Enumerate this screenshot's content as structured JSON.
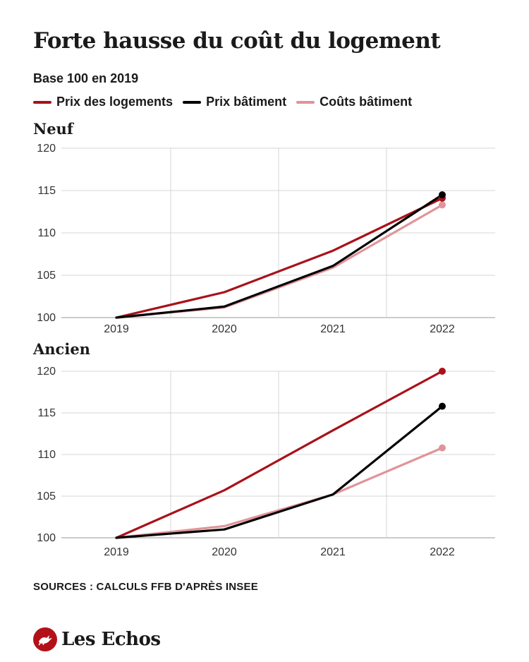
{
  "title": "Forte hausse du coût du logement",
  "subtitle": "Base 100 en 2019",
  "legend": [
    {
      "label": "Prix des logements",
      "color": "#a8121a"
    },
    {
      "label": "Prix bâtiment",
      "color": "#000000"
    },
    {
      "label": "Coûts bâtiment",
      "color": "#e0949a"
    }
  ],
  "chart_data": [
    {
      "type": "line",
      "title": "Neuf",
      "categories": [
        "2019",
        "2020",
        "2021",
        "2022"
      ],
      "yticks": [
        "100",
        "105",
        "110",
        "115",
        "120"
      ],
      "ylim": [
        100,
        120
      ],
      "grid": true,
      "series": [
        {
          "name": "Prix des logements",
          "values": [
            100,
            103,
            107.9,
            114.1
          ],
          "color": "#a8121a"
        },
        {
          "name": "Prix bâtiment",
          "values": [
            100,
            101.3,
            106.1,
            114.5
          ],
          "color": "#000000"
        },
        {
          "name": "Coûts bâtiment",
          "values": [
            100,
            101.2,
            105.9,
            113.3
          ],
          "color": "#e0949a"
        }
      ]
    },
    {
      "type": "line",
      "title": "Ancien",
      "categories": [
        "2019",
        "2020",
        "2021",
        "2022"
      ],
      "yticks": [
        "100",
        "105",
        "110",
        "115",
        "120"
      ],
      "ylim": [
        100,
        120
      ],
      "grid": true,
      "series": [
        {
          "name": "Prix des logements",
          "values": [
            100,
            105.7,
            112.9,
            120
          ],
          "color": "#a8121a"
        },
        {
          "name": "Prix bâtiment",
          "values": [
            100,
            101,
            105.2,
            115.8
          ],
          "color": "#000000"
        },
        {
          "name": "Coûts bâtiment",
          "values": [
            100,
            101.4,
            105.2,
            110.8
          ],
          "color": "#e0949a"
        }
      ]
    }
  ],
  "source": "SOURCES : CALCULS FFB D'APRÈS INSEE",
  "logo": {
    "text": "Les Echos",
    "icon": "les-echos-logo-icon",
    "color": "#b3111a"
  }
}
